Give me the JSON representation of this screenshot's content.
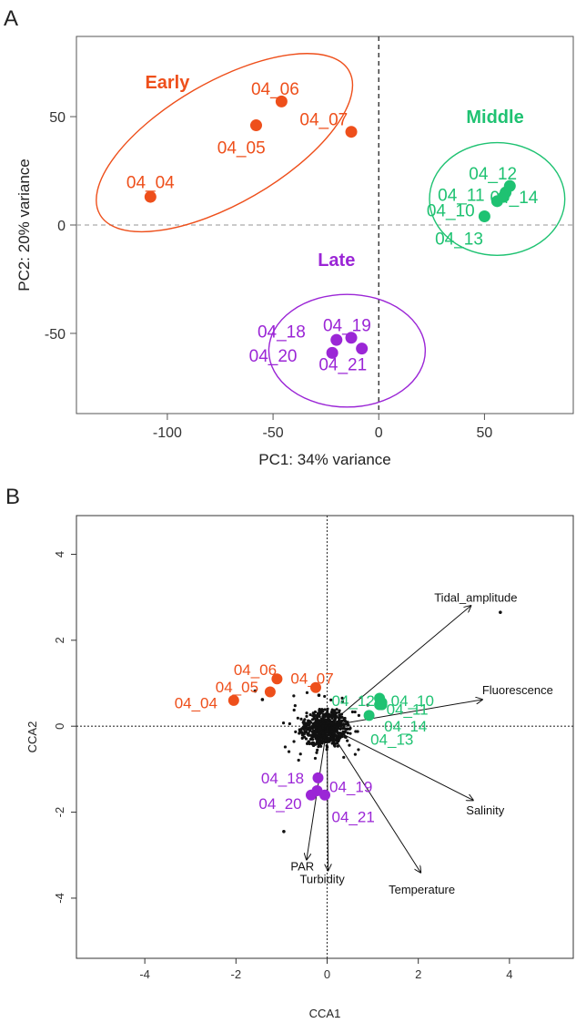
{
  "colors": {
    "early": "#ee4f1b",
    "middle": "#1fc272",
    "late": "#9b26d6",
    "species": "#111111"
  },
  "chart_data": [
    {
      "type": "scatter",
      "panel": "A",
      "xlabel": "PC1: 34% variance",
      "ylabel": "PC2: 20% variance",
      "xlim": [
        -143,
        92
      ],
      "ylim": [
        -87,
        87
      ],
      "xticks": [
        -100,
        -50,
        0,
        50
      ],
      "yticks": [
        -50,
        0,
        50
      ],
      "reference_lines": {
        "x": 0,
        "y": 0
      },
      "groups": [
        {
          "key": "early",
          "name": "Early",
          "name_pos": [
            -100,
            63
          ],
          "ellipse": {
            "cx": -73,
            "cy": 38,
            "rx": 68,
            "ry": 28,
            "angle_deg": 30
          }
        },
        {
          "key": "middle",
          "name": "Middle",
          "name_pos": [
            55,
            47
          ],
          "ellipse": {
            "cx": 56,
            "cy": 12,
            "rx": 32,
            "ry": 26,
            "angle_deg": 0
          }
        },
        {
          "key": "late",
          "name": "Late",
          "name_pos": [
            -20,
            -19
          ],
          "ellipse": {
            "cx": -15,
            "cy": -58,
            "rx": 37,
            "ry": 26,
            "angle_deg": 0
          }
        }
      ],
      "points": [
        {
          "label": "04_04",
          "group": "early",
          "x": -108,
          "y": 13,
          "lx": -108,
          "ly": 20
        },
        {
          "label": "04_05",
          "group": "early",
          "x": -58,
          "y": 46,
          "lx": -65,
          "ly": 36
        },
        {
          "label": "04_06",
          "group": "early",
          "x": -46,
          "y": 57,
          "lx": -49,
          "ly": 63
        },
        {
          "label": "04_07",
          "group": "early",
          "x": -13,
          "y": 43,
          "lx": -26,
          "ly": 49
        },
        {
          "label": "04_10",
          "group": "middle",
          "x": 50,
          "y": 4,
          "lx": 34,
          "ly": 7
        },
        {
          "label": "04_11",
          "group": "middle",
          "x": 56,
          "y": 11,
          "lx": 39,
          "ly": 14
        },
        {
          "label": "04_12",
          "group": "middle",
          "x": 60,
          "y": 15,
          "lx": 54,
          "ly": 24
        },
        {
          "label": "04_13",
          "group": "middle",
          "x": 59,
          "y": 13,
          "lx": 38,
          "ly": -6
        },
        {
          "label": "04_14",
          "group": "middle",
          "x": 62,
          "y": 18,
          "lx": 64,
          "ly": 13
        },
        {
          "label": "04_18",
          "group": "late",
          "x": -20,
          "y": -53,
          "lx": -46,
          "ly": -49
        },
        {
          "label": "04_19",
          "group": "late",
          "x": -13,
          "y": -52,
          "lx": -15,
          "ly": -46
        },
        {
          "label": "04_20",
          "group": "late",
          "x": -22,
          "y": -59,
          "lx": -50,
          "ly": -60
        },
        {
          "label": "04_21",
          "group": "late",
          "x": -8,
          "y": -57,
          "lx": -17,
          "ly": -64
        }
      ]
    },
    {
      "type": "scatter",
      "panel": "B",
      "xlabel": "CCA1",
      "ylabel": "CCA2",
      "xlim": [
        -5.5,
        5.4
      ],
      "ylim": [
        -5.4,
        4.9
      ],
      "xticks": [
        -4,
        -2,
        0,
        2,
        4
      ],
      "yticks": [
        -4,
        -2,
        0,
        2,
        4
      ],
      "reference_lines": {
        "x": 0,
        "y": 0
      },
      "samples": [
        {
          "label": "04_04",
          "group": "early",
          "x": -2.05,
          "y": 0.6,
          "lx": -3.35,
          "ly": 0.55
        },
        {
          "label": "04_05",
          "group": "early",
          "x": -1.25,
          "y": 0.8,
          "lx": -2.45,
          "ly": 0.92
        },
        {
          "label": "04_06",
          "group": "early",
          "x": -1.1,
          "y": 1.1,
          "lx": -2.05,
          "ly": 1.32
        },
        {
          "label": "04_07",
          "group": "early",
          "x": -0.25,
          "y": 0.9,
          "lx": -0.8,
          "ly": 1.12
        },
        {
          "label": "04_10",
          "group": "middle",
          "x": 1.15,
          "y": 0.65,
          "lx": 1.4,
          "ly": 0.6
        },
        {
          "label": "04_11",
          "group": "middle",
          "x": 1.15,
          "y": 0.5,
          "lx": 1.3,
          "ly": 0.4
        },
        {
          "label": "04_12",
          "group": "middle",
          "x": 1.2,
          "y": 0.55,
          "lx": 0.1,
          "ly": 0.6
        },
        {
          "label": "04_13",
          "group": "middle",
          "x": 1.2,
          "y": 0.5,
          "lx": 0.95,
          "ly": -0.3
        },
        {
          "label": "04_14",
          "group": "middle",
          "x": 0.92,
          "y": 0.25,
          "lx": 1.25,
          "ly": 0.0
        },
        {
          "label": "04_18",
          "group": "late",
          "x": -0.2,
          "y": -1.2,
          "lx": -1.45,
          "ly": -1.2
        },
        {
          "label": "04_19",
          "group": "late",
          "x": -0.22,
          "y": -1.5,
          "lx": 0.05,
          "ly": -1.4
        },
        {
          "label": "04_20",
          "group": "late",
          "x": -0.35,
          "y": -1.6,
          "lx": -1.5,
          "ly": -1.8
        },
        {
          "label": "04_21",
          "group": "late",
          "x": -0.05,
          "y": -1.6,
          "lx": 0.1,
          "ly": -2.1
        }
      ],
      "env_vectors": [
        {
          "name": "Tidal_amplitude",
          "x": 3.15,
          "y": 2.8,
          "lx": 2.35,
          "ly": 2.9
        },
        {
          "name": "Fluorescence",
          "x": 3.4,
          "y": 0.62,
          "lx": 3.4,
          "ly": 0.75
        },
        {
          "name": "Salinity",
          "x": 3.2,
          "y": -1.72,
          "lx": 3.05,
          "ly": -2.05
        },
        {
          "name": "Temperature",
          "x": 2.05,
          "y": -3.4,
          "lx": 1.35,
          "ly": -3.9
        },
        {
          "name": "PAR",
          "x": -0.45,
          "y": -3.1,
          "lx": -0.8,
          "ly": -3.35
        },
        {
          "name": "Turbidity",
          "x": 0.02,
          "y": -3.35,
          "lx": -0.6,
          "ly": -3.65
        }
      ],
      "outlier_species": [
        [
          3.8,
          2.65
        ],
        [
          -0.95,
          -2.45
        ],
        [
          -1.58,
          0.82
        ],
        [
          -1.42,
          0.62
        ],
        [
          -0.18,
          0.72
        ]
      ]
    }
  ],
  "panels": [
    {
      "letter": "A"
    },
    {
      "letter": "B"
    }
  ]
}
